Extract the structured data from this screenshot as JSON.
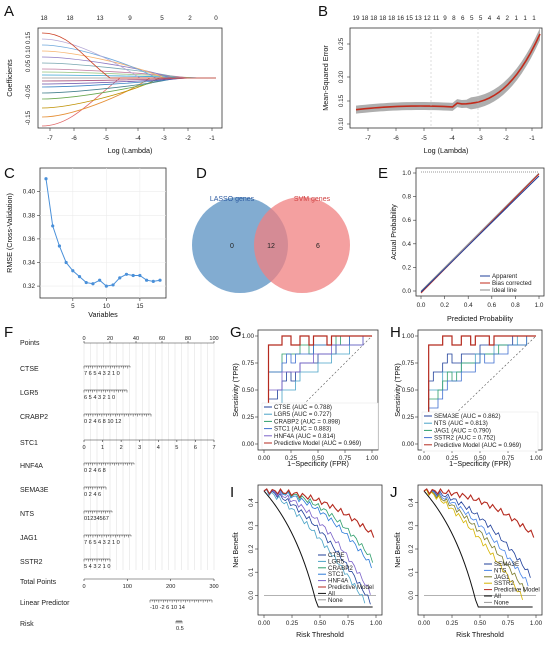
{
  "panels": {
    "A": {
      "letter": "A",
      "xlabel": "Log (Lambda)",
      "ylabel": "Coefficients",
      "top_ticks": [
        "18",
        "18",
        "13",
        "9",
        "5",
        "2",
        "0"
      ],
      "x_ticks": [
        "-7",
        "-6",
        "-5",
        "-4",
        "-3",
        "-2",
        "-1"
      ],
      "y_ticks": [
        "-0.15",
        "-0.05",
        "0.05 0.10 0.15"
      ]
    },
    "B": {
      "letter": "B",
      "xlabel": "Log (Lambda)",
      "ylabel": "Mean-Squared Error",
      "top_ticks": [
        "19",
        "18",
        "18",
        "18",
        "18",
        "16",
        "15",
        "13",
        "12",
        "11",
        "9",
        "8",
        "6",
        "5",
        "5",
        "4",
        "4",
        "2",
        "1",
        "1",
        "1"
      ],
      "x_ticks": [
        "-7",
        "-6",
        "-5",
        "-4",
        "-3",
        "-2",
        "-1"
      ],
      "y_ticks": [
        "0.10",
        "0.15",
        "0.20",
        "0.25"
      ]
    },
    "C": {
      "letter": "C",
      "xlabel": "Variables",
      "ylabel": "RMSE (Cross-Validation)",
      "x_ticks": [
        "5",
        "10",
        "15"
      ],
      "y_ticks": [
        "0.32",
        "0.34",
        "0.36",
        "0.38",
        "0.40"
      ]
    },
    "D": {
      "letter": "D",
      "left_label": "LASSO genes",
      "right_label": "SVM genes",
      "left_only": "0",
      "both": "12",
      "right_only": "6"
    },
    "E": {
      "letter": "E",
      "xlabel": "Predicted Probability",
      "ylabel": "Actual Probability",
      "ticks": [
        "0.0",
        "0.2",
        "0.4",
        "0.6",
        "0.8",
        "1.0"
      ],
      "legend": [
        "Apparent",
        "Bias corrected",
        "Ideal line"
      ]
    },
    "F": {
      "letter": "F",
      "rows": [
        {
          "label": "Points",
          "ticks": [
            "0",
            "20",
            "40",
            "60",
            "80",
            "100"
          ]
        },
        {
          "label": "CTSE",
          "ticks": "7 6 5 4 3 2 1 0"
        },
        {
          "label": "LGR5",
          "ticks": "6 5 4 3 2 1 0"
        },
        {
          "label": "CRABP2",
          "ticks": "0 2 4 6 8 10 12"
        },
        {
          "label": "STC1",
          "ticks": [
            "0",
            "1",
            "2",
            "3",
            "4",
            "5",
            "6",
            "7"
          ]
        },
        {
          "label": "HNF4A",
          "ticks": "0 2 4 6 8"
        },
        {
          "label": "SEMA3E",
          "ticks": "0 2 4 6"
        },
        {
          "label": "NTS",
          "ticks": "01234567"
        },
        {
          "label": "JAG1",
          "ticks": "7 6 5 4 3 2 1 0"
        },
        {
          "label": "SSTR2",
          "ticks": "5 4 3 2 1 0"
        },
        {
          "label": "Total Points",
          "ticks": [
            "0",
            "100",
            "200",
            "300"
          ]
        },
        {
          "label": "Linear Predictor",
          "ticks": "-10 -2 6 10 14"
        },
        {
          "label": "Risk",
          "ticks": "0.5"
        }
      ]
    },
    "G": {
      "letter": "G",
      "xlabel": "1−Specificity (FPR)",
      "ylabel": "Sensitivity (TPR)",
      "ticks": [
        "0.00",
        "0.25",
        "0.50",
        "0.75",
        "1.00"
      ],
      "legend": [
        "CTSE (AUC = 0.788)",
        "LGR5 (AUC = 0.727)",
        "CRABP2 (AUC = 0.898)",
        "STC1 (AUC = 0.883)",
        "HNF4A (AUC = 0.814)",
        "Predictive Model (AUC = 0.969)"
      ]
    },
    "H": {
      "letter": "H",
      "xlabel": "1−Specificity (FPR)",
      "ylabel": "Sensitivity (TPR)",
      "ticks": [
        "0.00",
        "0.25",
        "0.50",
        "0.75",
        "1.00"
      ],
      "legend": [
        "SEMA3E (AUC = 0.862)",
        "NTS (AUC = 0.813)",
        "JAG1 (AUC = 0.790)",
        "SSTR2 (AUC = 0.752)",
        "Predictive Model (AUC = 0.969)"
      ]
    },
    "I": {
      "letter": "I",
      "xlabel": "Risk Threshold",
      "ylabel": "Net Benefit",
      "x_ticks": [
        "0.00",
        "0.25",
        "0.50",
        "0.75",
        "1.00"
      ],
      "y_ticks": [
        "0.0",
        "0.1",
        "0.2",
        "0.3",
        "0.4"
      ],
      "legend": [
        "CTSE",
        "LGR5",
        "CRABP2",
        "STC1",
        "HNF4A",
        "Predictive Model",
        "All",
        "None"
      ]
    },
    "J": {
      "letter": "J",
      "xlabel": "Risk Threshold",
      "ylabel": "Net Benefit",
      "x_ticks": [
        "0.00",
        "0.25",
        "0.50",
        "0.75",
        "1.00"
      ],
      "y_ticks": [
        "0.0",
        "0.1",
        "0.2",
        "0.3",
        "0.4"
      ],
      "legend": [
        "SEMA3E",
        "NTS",
        "JAG1",
        "SSTR2",
        "Predictive Model",
        "All",
        "None"
      ]
    }
  },
  "chart_data": [
    {
      "panel": "C",
      "type": "line",
      "x": [
        1,
        2,
        3,
        4,
        5,
        6,
        7,
        8,
        9,
        10,
        11,
        12,
        13,
        14,
        15,
        16,
        17,
        18
      ],
      "values": [
        0.411,
        0.371,
        0.354,
        0.34,
        0.333,
        0.328,
        0.323,
        0.322,
        0.325,
        0.32,
        0.321,
        0.327,
        0.33,
        0.329,
        0.329,
        0.325,
        0.324,
        0.325
      ],
      "xlabel": "Variables",
      "ylabel": "RMSE (Cross-Validation)",
      "ylim": [
        0.315,
        0.415
      ]
    },
    {
      "panel": "G",
      "type": "line",
      "auc": {
        "CTSE": 0.788,
        "LGR5": 0.727,
        "CRABP2": 0.898,
        "STC1": 0.883,
        "HNF4A": 0.814,
        "Predictive Model": 0.969
      }
    },
    {
      "panel": "H",
      "type": "line",
      "auc": {
        "SEMA3E": 0.862,
        "NTS": 0.813,
        "JAG1": 0.79,
        "SSTR2": 0.752,
        "Predictive Model": 0.969
      }
    }
  ],
  "colors": {
    "ctse": "#1f3f9a",
    "lgr5": "#4aa3c7",
    "crabp2": "#2e9e6b",
    "stc1": "#3f6fd0",
    "hnf4a": "#7b62c9",
    "model": "#b52a1f",
    "lasso": "#6c9ec9",
    "svm": "#f08080",
    "mse": "#c22b1b"
  }
}
